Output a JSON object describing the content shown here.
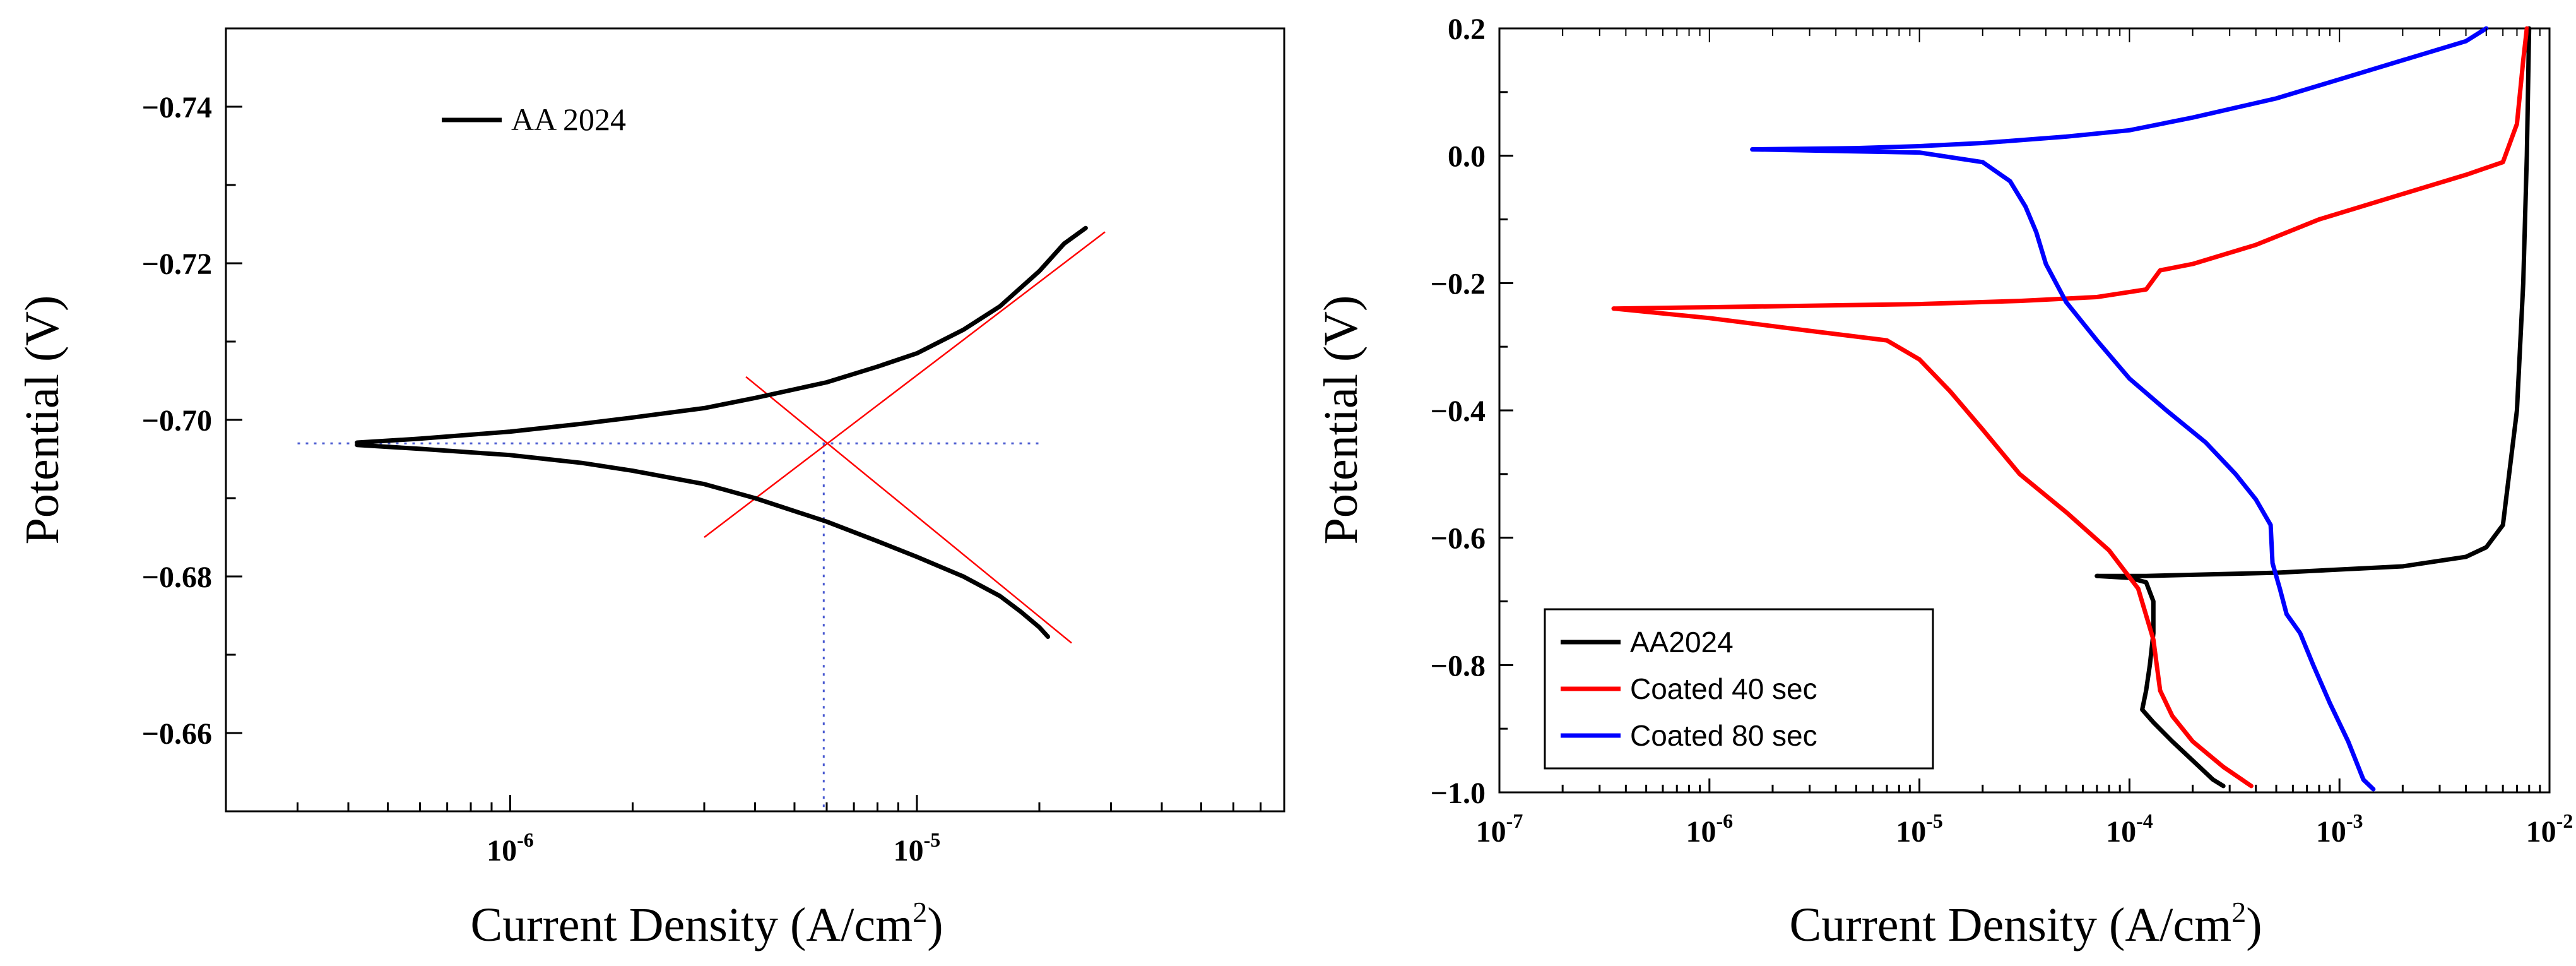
{
  "chart_data": [
    {
      "type": "line",
      "xscale": "log",
      "xlim": [
        2e-07,
        8e-05
      ],
      "ylim": [
        -0.65,
        -0.75
      ],
      "yreversed": true,
      "xlabel": "Current Density (A/cm",
      "xlabel_sup": "2",
      "xlabel_close": ")",
      "ylabel": "Potential (V)",
      "yticks": [
        {
          "value": -0.74,
          "label": "−0.74"
        },
        {
          "value": -0.72,
          "label": "−0.72"
        },
        {
          "value": -0.7,
          "label": "−0.70"
        },
        {
          "value": -0.68,
          "label": "−0.68"
        },
        {
          "value": -0.66,
          "label": "−0.66"
        }
      ],
      "xticks": [
        {
          "value": 1e-06,
          "base": "10",
          "exp": "-6"
        },
        {
          "value": 1e-05,
          "base": "10",
          "exp": "-5"
        }
      ],
      "legend": {
        "position": "top-left",
        "entries": [
          {
            "name": "AA 2024",
            "color": "#000000"
          }
        ]
      },
      "series": [
        {
          "name": "AA 2024",
          "color": "#000000",
          "branches": [
            {
              "points": [
                [
                  4.2e-07,
                  -0.6971
                ],
                [
                  6e-07,
                  -0.6976
                ],
                [
                  1e-06,
                  -0.6985
                ],
                [
                  1.5e-06,
                  -0.6995
                ],
                [
                  2e-06,
                  -0.7003
                ],
                [
                  3e-06,
                  -0.7015
                ],
                [
                  4e-06,
                  -0.7028
                ],
                [
                  6e-06,
                  -0.7048
                ],
                [
                  8e-06,
                  -0.7068
                ],
                [
                  1e-05,
                  -0.7085
                ],
                [
                  1.3e-05,
                  -0.7115
                ],
                [
                  1.6e-05,
                  -0.7145
                ],
                [
                  2e-05,
                  -0.719
                ],
                [
                  2.3e-05,
                  -0.7225
                ],
                [
                  2.6e-05,
                  -0.7245
                ]
              ]
            },
            {
              "points": [
                [
                  4.2e-07,
                  -0.6968
                ],
                [
                  6e-07,
                  -0.6963
                ],
                [
                  1e-06,
                  -0.6955
                ],
                [
                  1.5e-06,
                  -0.6945
                ],
                [
                  2e-06,
                  -0.6935
                ],
                [
                  3e-06,
                  -0.6918
                ],
                [
                  4e-06,
                  -0.69
                ],
                [
                  6e-06,
                  -0.687
                ],
                [
                  8e-06,
                  -0.6845
                ],
                [
                  1e-05,
                  -0.6825
                ],
                [
                  1.3e-05,
                  -0.68
                ],
                [
                  1.6e-05,
                  -0.6775
                ],
                [
                  1.8e-05,
                  -0.6755
                ],
                [
                  2e-05,
                  -0.6735
                ],
                [
                  2.1e-05,
                  -0.6723
                ]
              ]
            }
          ]
        }
      ],
      "tafel_lines": [
        {
          "color": "#ff0000",
          "points": [
            [
              3e-06,
              -0.685
            ],
            [
              2.9e-05,
              -0.724
            ]
          ]
        },
        {
          "color": "#ff0000",
          "points": [
            [
              3.8e-06,
              -0.7055
            ],
            [
              2.4e-05,
              -0.6715
            ]
          ]
        }
      ],
      "guide_lines": [
        {
          "color": "#4a5ad0",
          "points": [
            [
              3e-07,
              -0.697
            ],
            [
              2e-05,
              -0.697
            ]
          ]
        },
        {
          "color": "#4a5ad0",
          "points": [
            [
              5.9e-06,
              -0.697
            ],
            [
              5.9e-06,
              -0.65
            ]
          ]
        }
      ]
    },
    {
      "type": "line",
      "xscale": "log",
      "xlim": [
        1e-07,
        0.01
      ],
      "ylim": [
        -1.0,
        0.2
      ],
      "xlabel": "Current Density (A/cm",
      "xlabel_sup": "2",
      "xlabel_close": ")",
      "ylabel": "Potential (V)",
      "yticks": [
        {
          "value": 0.2,
          "label": "0.2"
        },
        {
          "value": 0.0,
          "label": "0.0"
        },
        {
          "value": -0.2,
          "label": "−0.2"
        },
        {
          "value": -0.4,
          "label": "−0.4"
        },
        {
          "value": -0.6,
          "label": "−0.6"
        },
        {
          "value": -0.8,
          "label": "−0.8"
        },
        {
          "value": -1.0,
          "label": "−1.0"
        }
      ],
      "xticks": [
        {
          "value": 1e-07,
          "base": "10",
          "exp": "-7"
        },
        {
          "value": 1e-06,
          "base": "10",
          "exp": "-6"
        },
        {
          "value": 1e-05,
          "base": "10",
          "exp": "-5"
        },
        {
          "value": 0.0001,
          "base": "10",
          "exp": "-4"
        },
        {
          "value": 0.001,
          "base": "10",
          "exp": "-3"
        },
        {
          "value": 0.01,
          "base": "10",
          "exp": "-2"
        }
      ],
      "legend": {
        "position": "bottom-left",
        "entries": [
          {
            "name": "AA2024",
            "color": "#000000"
          },
          {
            "name": "Coated 40 sec",
            "color": "#ff0000"
          },
          {
            "name": "Coated 80 sec",
            "color": "#0000ff"
          }
        ]
      },
      "series": [
        {
          "name": "AA2024",
          "color": "#000000",
          "branches": [
            {
              "points": [
                [
                  7e-05,
                  -0.66
                ],
                [
                  0.00012,
                  -0.66
                ],
                [
                  0.0005,
                  -0.655
                ],
                [
                  0.002,
                  -0.645
                ],
                [
                  0.004,
                  -0.63
                ],
                [
                  0.005,
                  -0.615
                ],
                [
                  0.006,
                  -0.58
                ],
                [
                  0.007,
                  -0.4
                ],
                [
                  0.0075,
                  -0.2
                ],
                [
                  0.0078,
                  0.0
                ],
                [
                  0.008,
                  0.2
                ]
              ]
            },
            {
              "points": [
                [
                  7e-05,
                  -0.66
                ],
                [
                  0.0001,
                  -0.663
                ],
                [
                  0.00012,
                  -0.67
                ],
                [
                  0.00013,
                  -0.7
                ],
                [
                  0.00013,
                  -0.75
                ],
                [
                  0.000125,
                  -0.8
                ],
                [
                  0.00012,
                  -0.84
                ],
                [
                  0.000115,
                  -0.87
                ],
                [
                  0.00013,
                  -0.89
                ],
                [
                  0.00016,
                  -0.92
                ],
                [
                  0.0002,
                  -0.95
                ],
                [
                  0.00025,
                  -0.98
                ],
                [
                  0.00028,
                  -0.99
                ]
              ]
            }
          ]
        },
        {
          "name": "Coated 40 sec",
          "color": "#ff0000",
          "branches": [
            {
              "points": [
                [
                  3.5e-07,
                  -0.24
                ],
                [
                  1e-06,
                  -0.238
                ],
                [
                  1e-05,
                  -0.233
                ],
                [
                  3e-05,
                  -0.228
                ],
                [
                  7e-05,
                  -0.222
                ],
                [
                  0.00012,
                  -0.21
                ],
                [
                  0.00014,
                  -0.18
                ],
                [
                  0.0002,
                  -0.17
                ],
                [
                  0.0004,
                  -0.14
                ],
                [
                  0.0008,
                  -0.1
                ],
                [
                  0.002,
                  -0.06
                ],
                [
                  0.004,
                  -0.03
                ],
                [
                  0.006,
                  -0.01
                ],
                [
                  0.007,
                  0.05
                ],
                [
                  0.0075,
                  0.15
                ],
                [
                  0.0078,
                  0.2
                ]
              ]
            },
            {
              "points": [
                [
                  3.5e-07,
                  -0.24
                ],
                [
                  1e-06,
                  -0.255
                ],
                [
                  3e-06,
                  -0.275
                ],
                [
                  7e-06,
                  -0.29
                ],
                [
                  1e-05,
                  -0.32
                ],
                [
                  1.4e-05,
                  -0.37
                ],
                [
                  2e-05,
                  -0.43
                ],
                [
                  3e-05,
                  -0.5
                ],
                [
                  5e-05,
                  -0.56
                ],
                [
                  8e-05,
                  -0.62
                ],
                [
                  0.00011,
                  -0.68
                ],
                [
                  0.00013,
                  -0.76
                ],
                [
                  0.00014,
                  -0.84
                ],
                [
                  0.00016,
                  -0.88
                ],
                [
                  0.0002,
                  -0.92
                ],
                [
                  0.00028,
                  -0.96
                ],
                [
                  0.00038,
                  -0.99
                ]
              ]
            }
          ]
        },
        {
          "name": "Coated 80 sec",
          "color": "#0000ff",
          "branches": [
            {
              "points": [
                [
                  1.6e-06,
                  0.01
                ],
                [
                  5e-06,
                  0.012
                ],
                [
                  1e-05,
                  0.015
                ],
                [
                  2e-05,
                  0.02
                ],
                [
                  5e-05,
                  0.03
                ],
                [
                  0.0001,
                  0.04
                ],
                [
                  0.0002,
                  0.06
                ],
                [
                  0.0005,
                  0.09
                ],
                [
                  0.001,
                  0.12
                ],
                [
                  0.002,
                  0.15
                ],
                [
                  0.004,
                  0.18
                ],
                [
                  0.005,
                  0.2
                ]
              ]
            },
            {
              "points": [
                [
                  1.6e-06,
                  0.01
                ],
                [
                  1e-05,
                  0.005
                ],
                [
                  2e-05,
                  -0.01
                ],
                [
                  2.7e-05,
                  -0.04
                ],
                [
                  3.2e-05,
                  -0.08
                ],
                [
                  3.6e-05,
                  -0.12
                ],
                [
                  4e-05,
                  -0.17
                ],
                [
                  5e-05,
                  -0.23
                ],
                [
                  7e-05,
                  -0.29
                ],
                [
                  0.0001,
                  -0.35
                ],
                [
                  0.00015,
                  -0.4
                ],
                [
                  0.00023,
                  -0.45
                ],
                [
                  0.00032,
                  -0.5
                ],
                [
                  0.0004,
                  -0.54
                ],
                [
                  0.00047,
                  -0.58
                ],
                [
                  0.00048,
                  -0.64
                ],
                [
                  0.00052,
                  -0.68
                ],
                [
                  0.00056,
                  -0.72
                ],
                [
                  0.00065,
                  -0.75
                ],
                [
                  0.00075,
                  -0.8
                ],
                [
                  0.0009,
                  -0.86
                ],
                [
                  0.0011,
                  -0.92
                ],
                [
                  0.0013,
                  -0.98
                ],
                [
                  0.00145,
                  -0.995
                ]
              ]
            }
          ]
        }
      ]
    }
  ]
}
